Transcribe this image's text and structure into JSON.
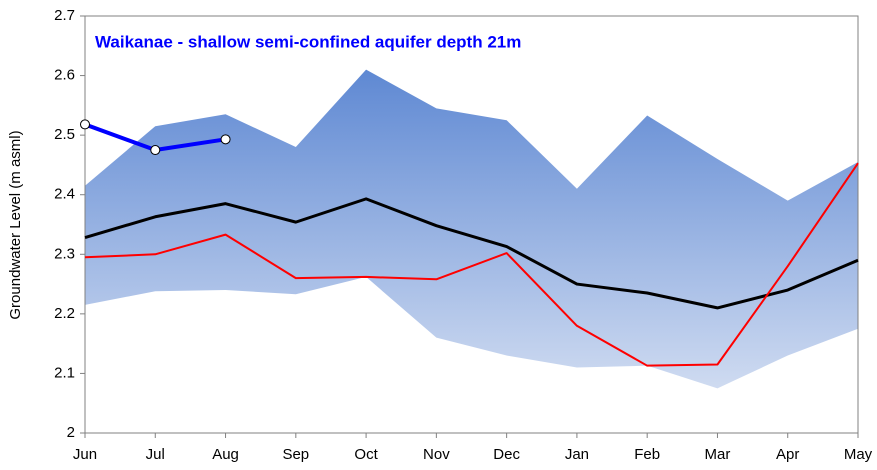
{
  "chart_data": {
    "type": "line",
    "title": "Waikanae - shallow semi-confined aquifer depth 21m",
    "title_color": "#0000ff",
    "y_label": "Groundwater Level (m asml)",
    "categories": [
      "Jun",
      "Jul",
      "Aug",
      "Sep",
      "Oct",
      "Nov",
      "Dec",
      "Jan",
      "Feb",
      "Mar",
      "Apr",
      "May"
    ],
    "ylim": [
      2,
      2.7
    ],
    "yticks": [
      2,
      2.1,
      2.2,
      2.3,
      2.4,
      2.5,
      2.6,
      2.7
    ],
    "band": {
      "upper": [
        2.415,
        2.515,
        2.535,
        2.48,
        2.61,
        2.545,
        2.525,
        2.41,
        2.533,
        2.46,
        2.39,
        2.455
      ],
      "lower": [
        2.215,
        2.238,
        2.24,
        2.233,
        2.262,
        2.16,
        2.13,
        2.11,
        2.113,
        2.075,
        2.13,
        2.175
      ]
    },
    "series": [
      {
        "color": "#000000",
        "values": [
          2.328,
          2.363,
          2.385,
          2.354,
          2.393,
          2.348,
          2.313,
          2.25,
          2.235,
          2.21,
          2.24,
          2.29
        ]
      },
      {
        "color": "#ff0000",
        "values": [
          2.295,
          2.3,
          2.333,
          2.26,
          2.262,
          2.258,
          2.302,
          2.18,
          2.113,
          2.115,
          2.28,
          2.453
        ]
      },
      {
        "color": "#0000ff",
        "markers": true,
        "values": [
          2.518,
          2.475,
          2.493,
          null,
          null,
          null,
          null,
          null,
          null,
          null,
          null,
          null
        ]
      }
    ]
  }
}
